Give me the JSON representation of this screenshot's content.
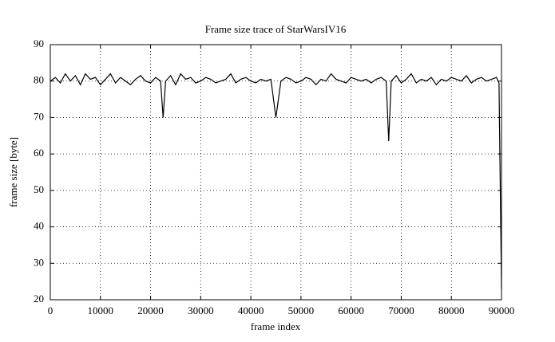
{
  "chart_data": {
    "type": "line",
    "title": "Frame size trace of StarWarsIV16",
    "x_label": "frame index",
    "y_label": "frame size [byte]",
    "x": [
      0,
      1000,
      2000,
      3000,
      4000,
      5000,
      6000,
      7000,
      8000,
      9000,
      10000,
      11000,
      12000,
      13000,
      14000,
      15000,
      16000,
      17000,
      18000,
      19000,
      20000,
      21000,
      22000,
      22500,
      23000,
      24000,
      25000,
      26000,
      27000,
      28000,
      29000,
      30000,
      31000,
      32000,
      33000,
      34000,
      35000,
      36000,
      37000,
      38000,
      39000,
      40000,
      41000,
      42000,
      43000,
      44000,
      45000,
      46000,
      47000,
      48000,
      49000,
      50000,
      51000,
      52000,
      53000,
      54000,
      55000,
      56000,
      57000,
      58000,
      59000,
      60000,
      61000,
      62000,
      63000,
      64000,
      65000,
      66000,
      67000,
      67500,
      68000,
      69000,
      70000,
      71000,
      72000,
      73000,
      74000,
      75000,
      76000,
      77000,
      78000,
      79000,
      80000,
      81000,
      82000,
      83000,
      84000,
      85000,
      86000,
      87000,
      88000,
      89000,
      89500,
      90000
    ],
    "values": [
      80,
      81,
      79.5,
      82,
      80,
      81.5,
      79,
      82,
      80.5,
      81,
      79,
      80.5,
      82,
      79.5,
      81,
      80,
      79,
      80.5,
      81.5,
      80,
      79.5,
      81,
      80,
      70,
      80,
      81.5,
      79,
      82,
      80.5,
      81,
      79.5,
      80,
      81,
      80.5,
      79.5,
      80,
      80.5,
      82,
      79.5,
      80.5,
      81,
      80,
      79.5,
      80.5,
      80,
      80.5,
      70,
      80,
      81,
      80.5,
      79.5,
      80,
      81,
      80.5,
      79,
      80.5,
      80,
      82,
      80.5,
      80,
      79.5,
      81,
      80.5,
      80,
      80.5,
      79.5,
      80.5,
      81,
      80,
      63.5,
      80,
      81.5,
      79.5,
      80.5,
      82,
      79.5,
      80.5,
      80,
      81,
      79,
      80.5,
      80,
      81,
      80.5,
      80,
      81.5,
      79.5,
      80.5,
      81,
      80,
      80.5,
      81,
      79.5,
      23
    ],
    "color": "#000000",
    "xlim": [
      0,
      90000
    ],
    "xticks": [
      0,
      10000,
      20000,
      30000,
      40000,
      50000,
      60000,
      70000,
      80000,
      90000
    ],
    "ylim": [
      20,
      90
    ],
    "yticks": [
      20,
      30,
      40,
      50,
      60,
      70,
      80,
      90
    ],
    "grid": true
  }
}
